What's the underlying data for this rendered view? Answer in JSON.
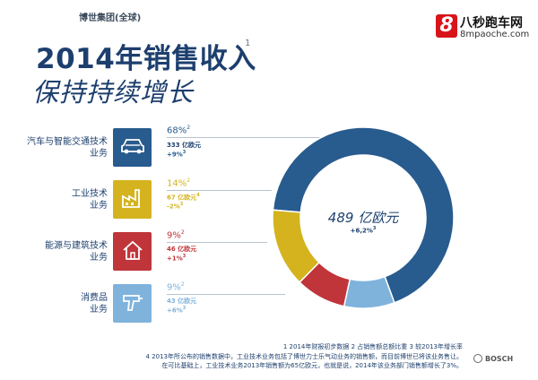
{
  "header": {
    "group_name": "博世集团(全球)",
    "title_line1": "2014年销售收入",
    "title_sup": "1",
    "title_line2": "保持持续增长"
  },
  "site_logo": {
    "badge": "8",
    "name": "八秒跑车网",
    "url": "8mpaoche.com"
  },
  "colors": {
    "mobility": "#285b8e",
    "industrial": "#d4b31f",
    "energy": "#c0353a",
    "consumer": "#7fb3dc"
  },
  "segments": [
    {
      "name_line1": "汽车与智能交通技术",
      "name_line2": "业务",
      "pct": "68%",
      "pct_sup": "2",
      "value": "333 亿欧元",
      "growth": "+9%",
      "growth_sup": "3",
      "icon": "car-icon"
    },
    {
      "name_line1": "工业技术",
      "name_line2": "业务",
      "pct": "14%",
      "pct_sup": "2",
      "value": "67 亿欧元",
      "value_sup": "4",
      "growth": "-2%",
      "growth_sup": "3",
      "icon": "factory-icon"
    },
    {
      "name_line1": "能源与建筑技术",
      "name_line2": "业务",
      "pct": "9%",
      "pct_sup": "2",
      "value": "46 亿欧元",
      "growth": "+1%",
      "growth_sup": "3",
      "icon": "house-icon"
    },
    {
      "name_line1": "消费品",
      "name_line2": "业务",
      "pct": "9%",
      "pct_sup": "2",
      "value": "43 亿欧元",
      "growth": "+6%",
      "growth_sup": "3",
      "icon": "drill-icon"
    }
  ],
  "center": {
    "value": "489 亿欧元",
    "growth": "+6,2%",
    "growth_sup": "3"
  },
  "chart_data": {
    "type": "pie",
    "categories": [
      "汽车与智能交通技术业务",
      "工业技术业务",
      "能源与建筑技术业务",
      "消费品业务"
    ],
    "values": [
      68,
      14,
      9,
      9
    ],
    "unit": "%",
    "center_label": "489 亿欧元"
  },
  "footnotes": {
    "line1": "1  2014年财报初步数据  2  占销售额总额比重  3  较2013年增长率",
    "line2": "4 2013年所公布的销售数据中，工业技术业务包括了博世力士乐气动业务的销售额，而目前博世已将该业务售让。",
    "line3": "在可比基础上，工业技术业务2013年销售额为65亿欧元，也就是说，2014年该业务部门销售额增长了3%。"
  },
  "brand": "BOSCH"
}
